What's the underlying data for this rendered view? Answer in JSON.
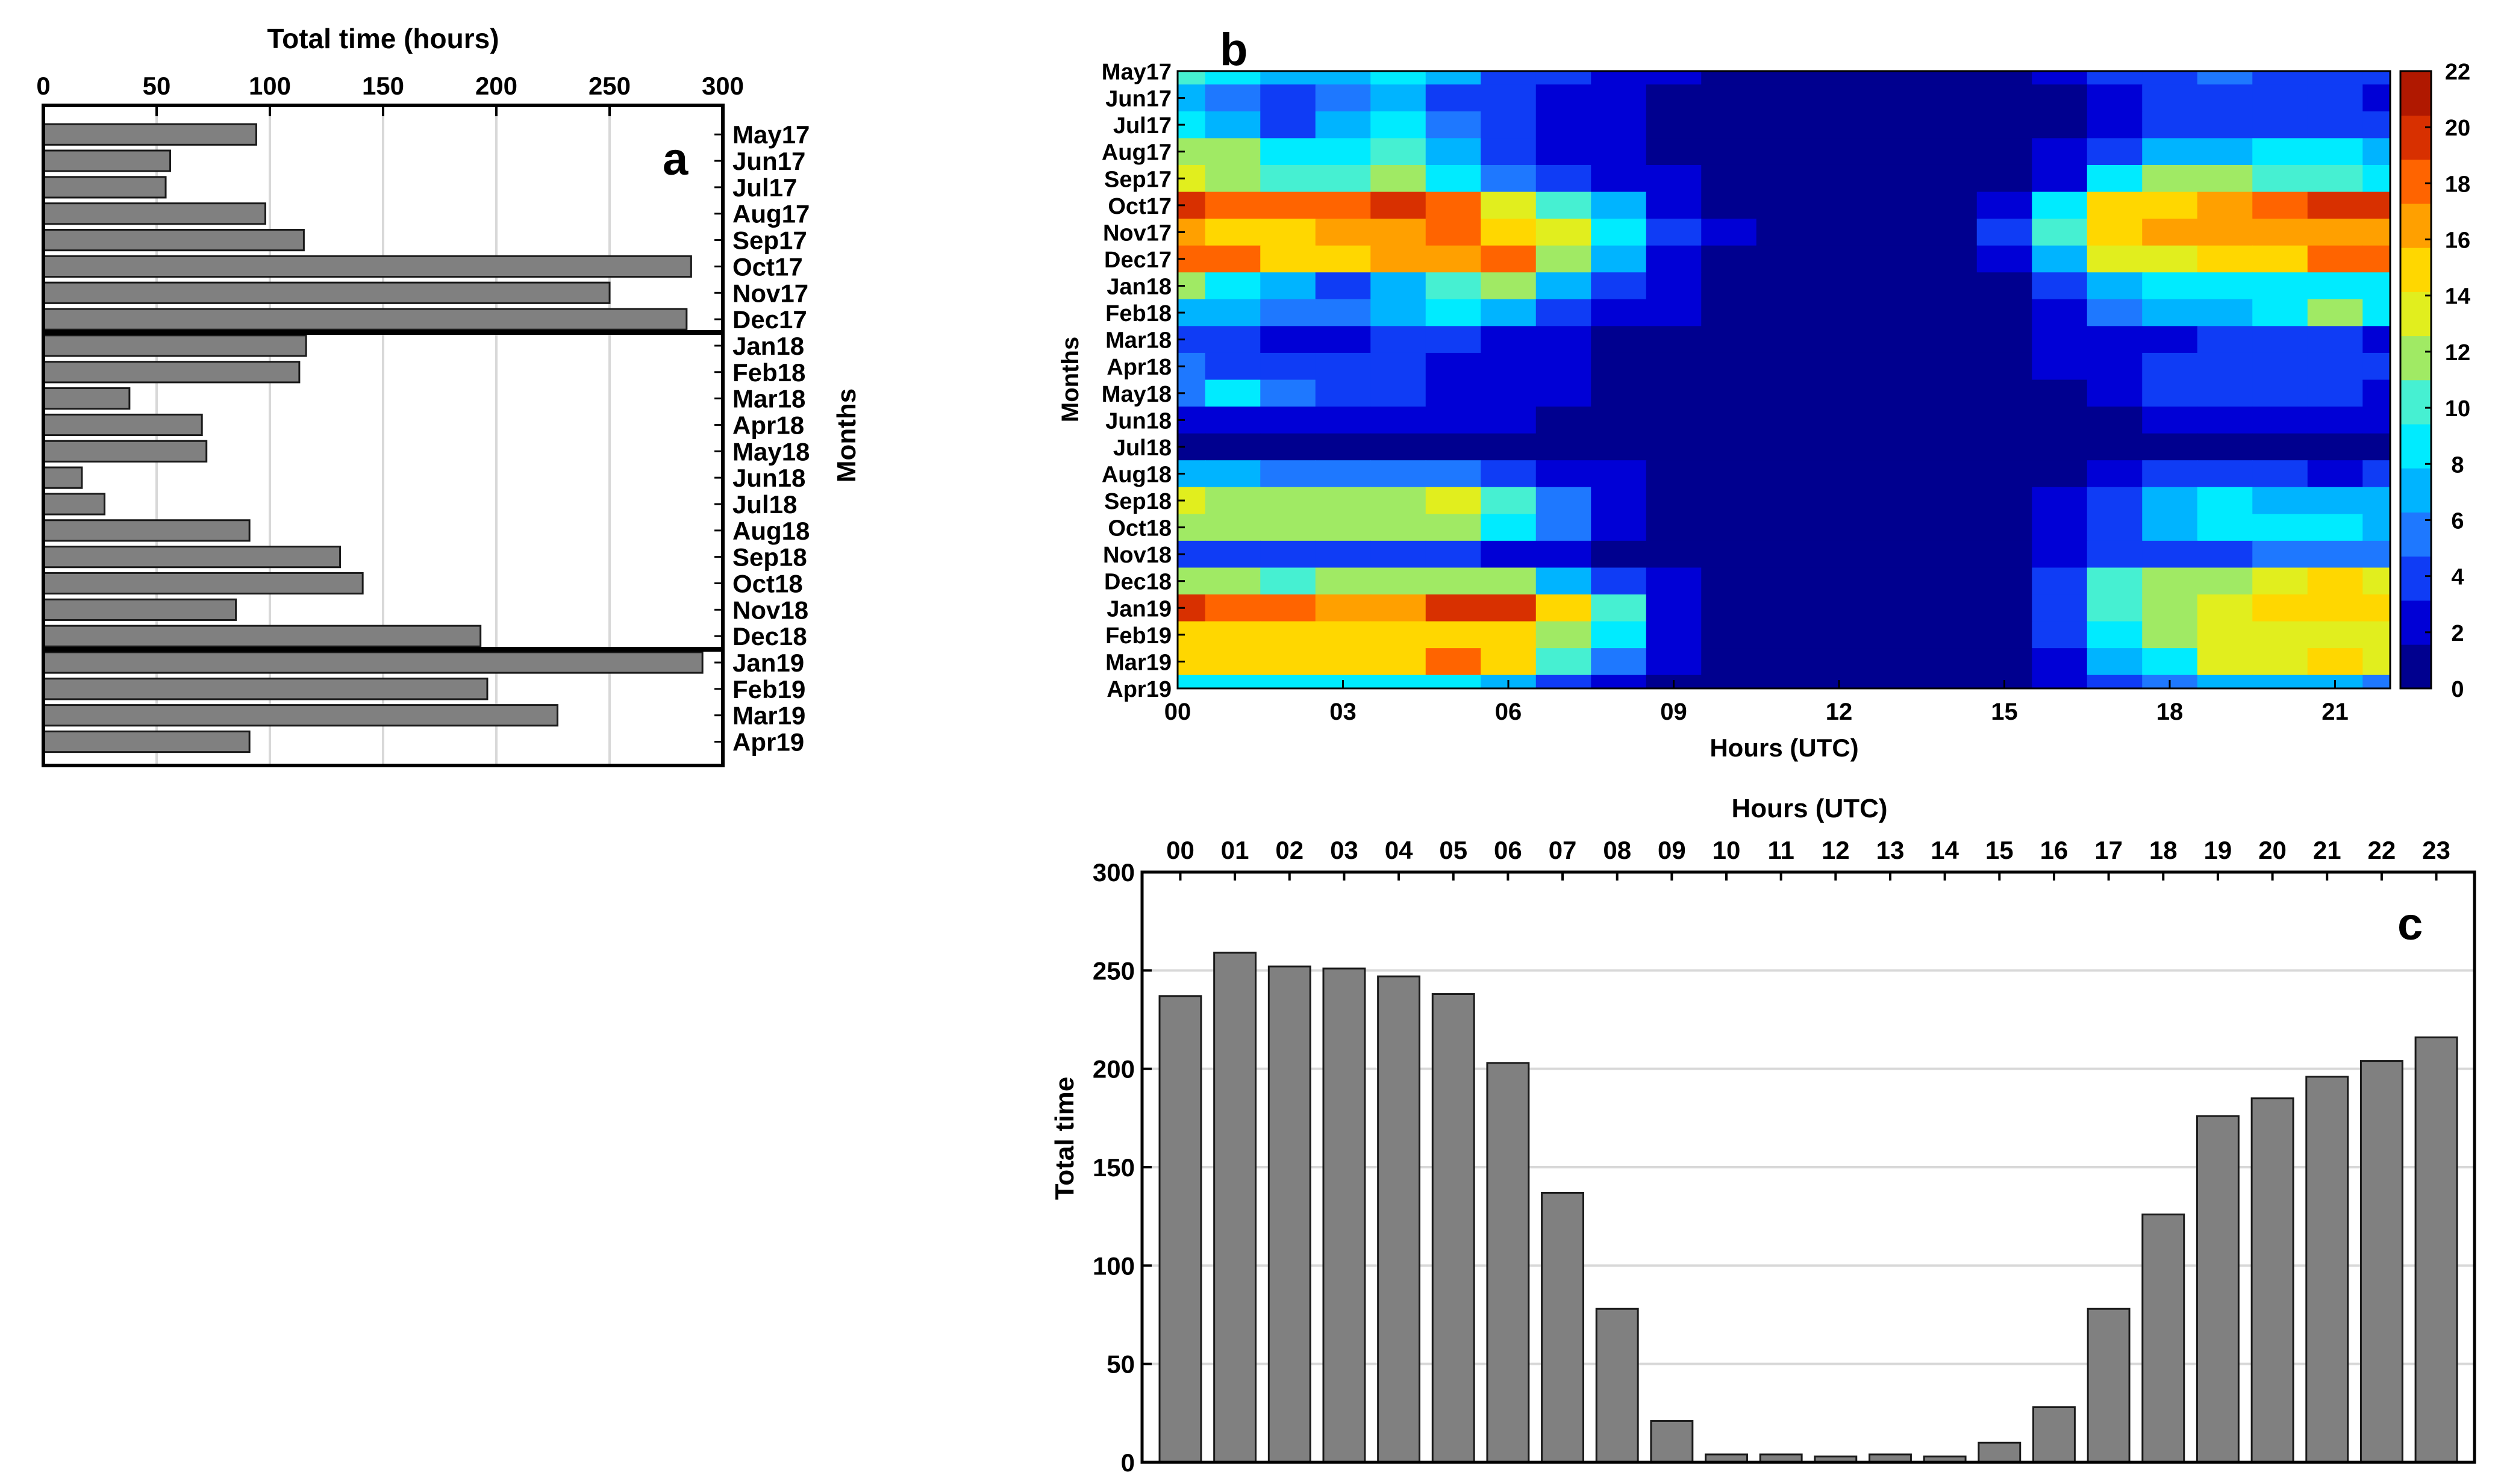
{
  "chart_data": [
    {
      "panel": "a",
      "type": "bar",
      "orientation": "horizontal",
      "title": "Total time (hours)",
      "xlabel": "Total time (hours)",
      "ylabel": "Months",
      "panel_label": "a",
      "xlim": [
        0,
        300
      ],
      "xticks": [
        "0",
        "50",
        "100",
        "150",
        "200",
        "250",
        "300"
      ],
      "categories": [
        "May17",
        "Jun17",
        "Jul17",
        "Aug17",
        "Sep17",
        "Oct17",
        "Nov17",
        "Dec17",
        "Jan18",
        "Feb18",
        "Mar18",
        "Apr18",
        "May18",
        "Jun18",
        "Jul18",
        "Aug18",
        "Sep18",
        "Oct18",
        "Nov18",
        "Dec18",
        "Jan19",
        "Feb19",
        "Mar19",
        "Apr19"
      ],
      "values": [
        94,
        56,
        54,
        98,
        115,
        286,
        250,
        284,
        116,
        113,
        38,
        70,
        72,
        17,
        27,
        91,
        131,
        141,
        85,
        193,
        291,
        196,
        227,
        91
      ],
      "separators_after": [
        "Dec17",
        "Dec18"
      ],
      "grid": true
    },
    {
      "panel": "b",
      "type": "heatmap",
      "subtype": "filled-contour",
      "panel_label": "b",
      "xlabel": "Hours (UTC)",
      "ylabel": "Months",
      "xticks": [
        "00",
        "03",
        "06",
        "09",
        "12",
        "15",
        "18",
        "21"
      ],
      "hours": [
        0,
        1,
        2,
        3,
        4,
        5,
        6,
        7,
        8,
        9,
        10,
        11,
        12,
        13,
        14,
        15,
        16,
        17,
        18,
        19,
        20,
        21,
        22
      ],
      "months": [
        "May17",
        "Jun17",
        "Jul17",
        "Aug17",
        "Sep17",
        "Oct17",
        "Nov17",
        "Dec17",
        "Jan18",
        "Feb18",
        "Mar18",
        "Apr18",
        "May18",
        "Jun18",
        "Jul18",
        "Aug18",
        "Sep18",
        "Oct18",
        "Nov18",
        "Dec18",
        "Jan19",
        "Feb19",
        "Mar19",
        "Apr19"
      ],
      "colorbar_ticks": [
        "0",
        "2",
        "4",
        "6",
        "8",
        "10",
        "12",
        "14",
        "16",
        "18",
        "20",
        "22"
      ],
      "colorbar_range": [
        0,
        22
      ],
      "colormap": [
        "#00008f",
        "#0000d6",
        "#0f3cf5",
        "#1e78ff",
        "#00b4ff",
        "#00ebff",
        "#46f0d2",
        "#a0ea64",
        "#e1ee1e",
        "#ffd700",
        "#ffa000",
        "#ff6400",
        "#d83000",
        "#b01800"
      ],
      "values": [
        [
          10,
          8,
          6,
          7,
          9,
          6,
          3,
          3,
          2,
          1,
          0,
          0,
          0,
          0,
          0,
          0,
          1,
          3,
          4,
          5,
          4,
          4,
          3
        ],
        [
          7,
          5,
          3,
          5,
          6,
          4,
          3,
          2,
          1,
          0,
          0,
          0,
          0,
          0,
          0,
          0,
          0,
          2,
          3,
          3,
          3,
          3,
          2
        ],
        [
          8,
          6,
          4,
          6,
          8,
          5,
          3,
          2,
          1,
          0,
          0,
          0,
          0,
          0,
          0,
          0,
          0,
          2,
          3,
          4,
          4,
          4,
          3
        ],
        [
          12,
          11,
          8,
          9,
          10,
          6,
          3,
          2,
          1,
          0,
          0,
          0,
          0,
          0,
          0,
          0,
          1,
          4,
          6,
          7,
          8,
          8,
          6
        ],
        [
          13,
          12,
          10,
          10,
          11,
          8,
          5,
          3,
          2,
          1,
          0,
          0,
          0,
          0,
          0,
          0,
          2,
          9,
          11,
          11,
          10,
          10,
          9
        ],
        [
          20,
          19,
          18,
          19,
          21,
          18,
          14,
          10,
          6,
          2,
          0,
          0,
          0,
          0,
          0,
          2,
          8,
          15,
          16,
          17,
          19,
          21,
          20
        ],
        [
          17,
          16,
          16,
          17,
          17,
          18,
          16,
          13,
          8,
          3,
          1,
          0,
          0,
          0,
          0,
          3,
          10,
          16,
          17,
          17,
          17,
          17,
          17
        ],
        [
          19,
          18,
          16,
          16,
          17,
          17,
          19,
          12,
          6,
          2,
          0,
          0,
          0,
          0,
          0,
          1,
          7,
          14,
          14,
          15,
          16,
          18,
          19
        ],
        [
          11,
          9,
          7,
          4,
          7,
          10,
          11,
          6,
          3,
          1,
          0,
          0,
          0,
          0,
          0,
          0,
          3,
          7,
          8,
          8,
          9,
          9,
          8
        ],
        [
          7,
          6,
          5,
          5,
          7,
          9,
          7,
          4,
          2,
          1,
          0,
          0,
          0,
          0,
          0,
          0,
          2,
          5,
          6,
          7,
          9,
          11,
          8
        ],
        [
          3,
          3,
          2,
          2,
          4,
          4,
          2,
          1,
          0,
          0,
          0,
          0,
          0,
          0,
          0,
          0,
          1,
          2,
          2,
          3,
          3,
          3,
          2
        ],
        [
          5,
          4,
          4,
          4,
          3,
          1,
          2,
          1,
          0,
          0,
          0,
          0,
          0,
          0,
          0,
          0,
          1,
          2,
          3,
          4,
          4,
          4,
          3
        ],
        [
          5,
          9,
          5,
          4,
          3,
          2,
          2,
          1,
          0,
          0,
          0,
          0,
          0,
          0,
          0,
          0,
          0,
          2,
          3,
          3,
          3,
          3,
          2
        ],
        [
          2,
          2,
          1,
          1,
          1,
          1,
          1,
          0,
          0,
          0,
          0,
          0,
          0,
          0,
          0,
          0,
          0,
          0,
          1,
          1,
          1,
          1,
          1
        ],
        [
          0,
          0,
          0,
          0,
          0,
          0,
          0,
          0,
          0,
          0,
          0,
          0,
          0,
          0,
          0,
          0,
          0,
          0,
          0,
          0,
          0,
          0,
          0
        ],
        [
          6,
          6,
          5,
          5,
          5,
          5,
          4,
          2,
          1,
          0,
          0,
          0,
          0,
          0,
          0,
          0,
          0,
          2,
          3,
          3,
          3,
          2,
          3
        ],
        [
          14,
          12,
          12,
          11,
          12,
          13,
          10,
          5,
          2,
          0,
          0,
          0,
          0,
          0,
          0,
          0,
          1,
          4,
          6,
          8,
          7,
          7,
          7
        ],
        [
          12,
          11,
          11,
          11,
          12,
          11,
          9,
          5,
          2,
          0,
          0,
          0,
          0,
          0,
          0,
          0,
          1,
          4,
          7,
          8,
          8,
          8,
          7
        ],
        [
          4,
          4,
          3,
          3,
          3,
          3,
          2,
          1,
          0,
          0,
          0,
          0,
          0,
          0,
          0,
          0,
          1,
          3,
          4,
          4,
          5,
          5,
          5
        ],
        [
          12,
          11,
          10,
          11,
          12,
          12,
          11,
          7,
          4,
          1,
          0,
          0,
          0,
          0,
          0,
          0,
          4,
          10,
          12,
          12,
          14,
          15,
          14
        ],
        [
          20,
          19,
          18,
          17,
          17,
          21,
          20,
          16,
          10,
          2,
          0,
          0,
          0,
          0,
          0,
          0,
          4,
          10,
          12,
          14,
          15,
          16,
          16
        ],
        [
          16,
          16,
          15,
          15,
          16,
          16,
          15,
          12,
          8,
          2,
          0,
          0,
          0,
          0,
          0,
          0,
          3,
          9,
          12,
          13,
          13,
          13,
          13
        ],
        [
          16,
          16,
          16,
          16,
          16,
          19,
          15,
          10,
          5,
          1,
          0,
          0,
          0,
          0,
          0,
          0,
          2,
          6,
          9,
          13,
          14,
          15,
          13
        ],
        [
          8,
          8,
          8,
          8,
          8,
          8,
          6,
          4,
          2,
          0,
          0,
          0,
          0,
          0,
          0,
          0,
          1,
          3,
          5,
          6,
          6,
          6,
          5
        ]
      ]
    },
    {
      "panel": "c",
      "type": "bar",
      "panel_label": "c",
      "title": "Hours (UTC)",
      "xlabel": "Hours (UTC)",
      "ylabel": "Total time",
      "ylim": [
        0,
        300
      ],
      "yticks": [
        "0",
        "50",
        "100",
        "150",
        "200",
        "250",
        "300"
      ],
      "categories": [
        "00",
        "01",
        "02",
        "03",
        "04",
        "05",
        "06",
        "07",
        "08",
        "09",
        "10",
        "11",
        "12",
        "13",
        "14",
        "15",
        "16",
        "17",
        "18",
        "19",
        "20",
        "21",
        "22",
        "23"
      ],
      "values": [
        237,
        259,
        252,
        251,
        247,
        238,
        203,
        137,
        78,
        21,
        4,
        4,
        3,
        4,
        3,
        10,
        28,
        78,
        126,
        176,
        185,
        196,
        204,
        216
      ],
      "grid": true
    }
  ]
}
